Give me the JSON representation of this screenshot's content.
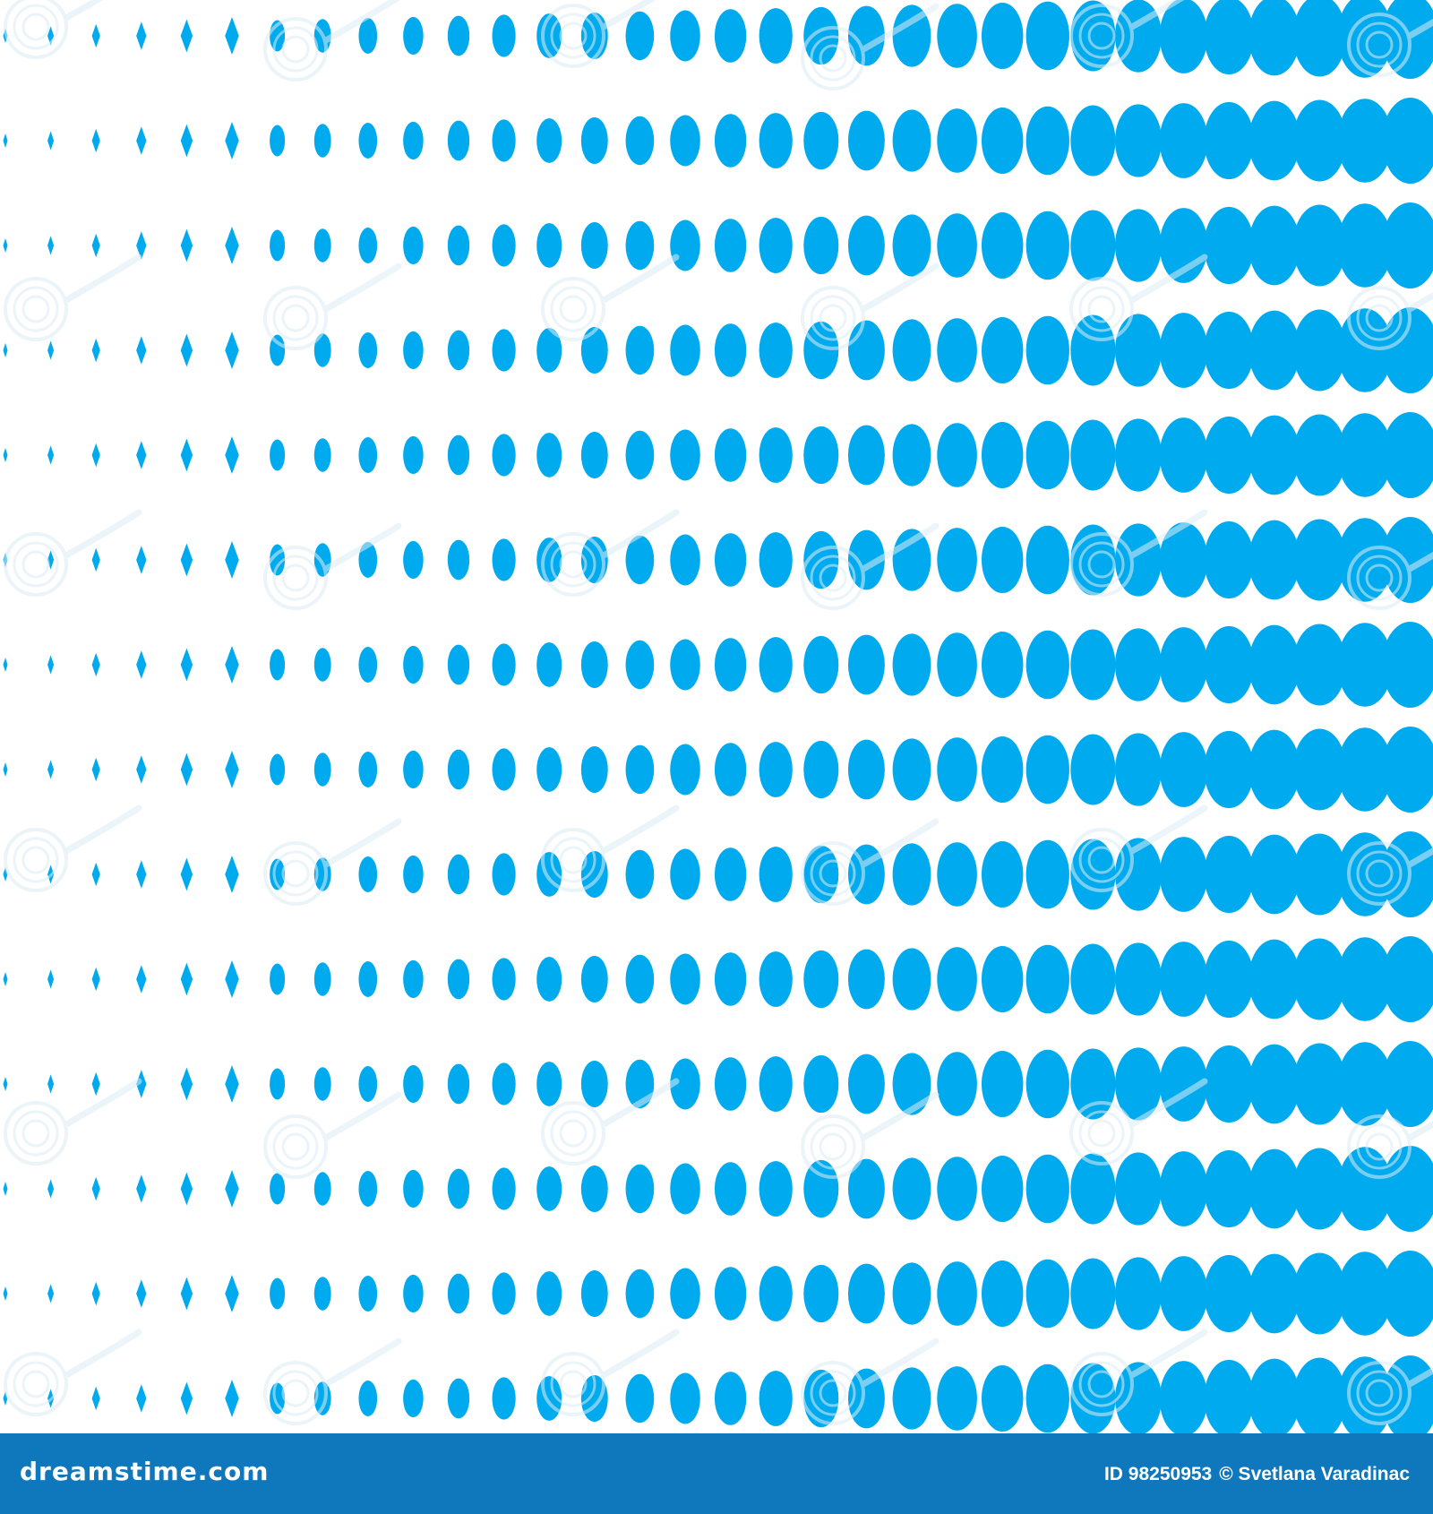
{
  "image": {
    "dot_color": "#00aaee",
    "background_color": "#ffffff",
    "watermark_color": "#dcecf5",
    "pattern_rows": 14,
    "pattern_columns": 32,
    "left_shape_name": "diamond",
    "right_shape_name": "ellipse"
  },
  "footer": {
    "background_color": "#0f78bd",
    "logo": "dreamstime.com",
    "id_label": "ID 98250953",
    "copyright": "© Svetlana Varadinac"
  }
}
